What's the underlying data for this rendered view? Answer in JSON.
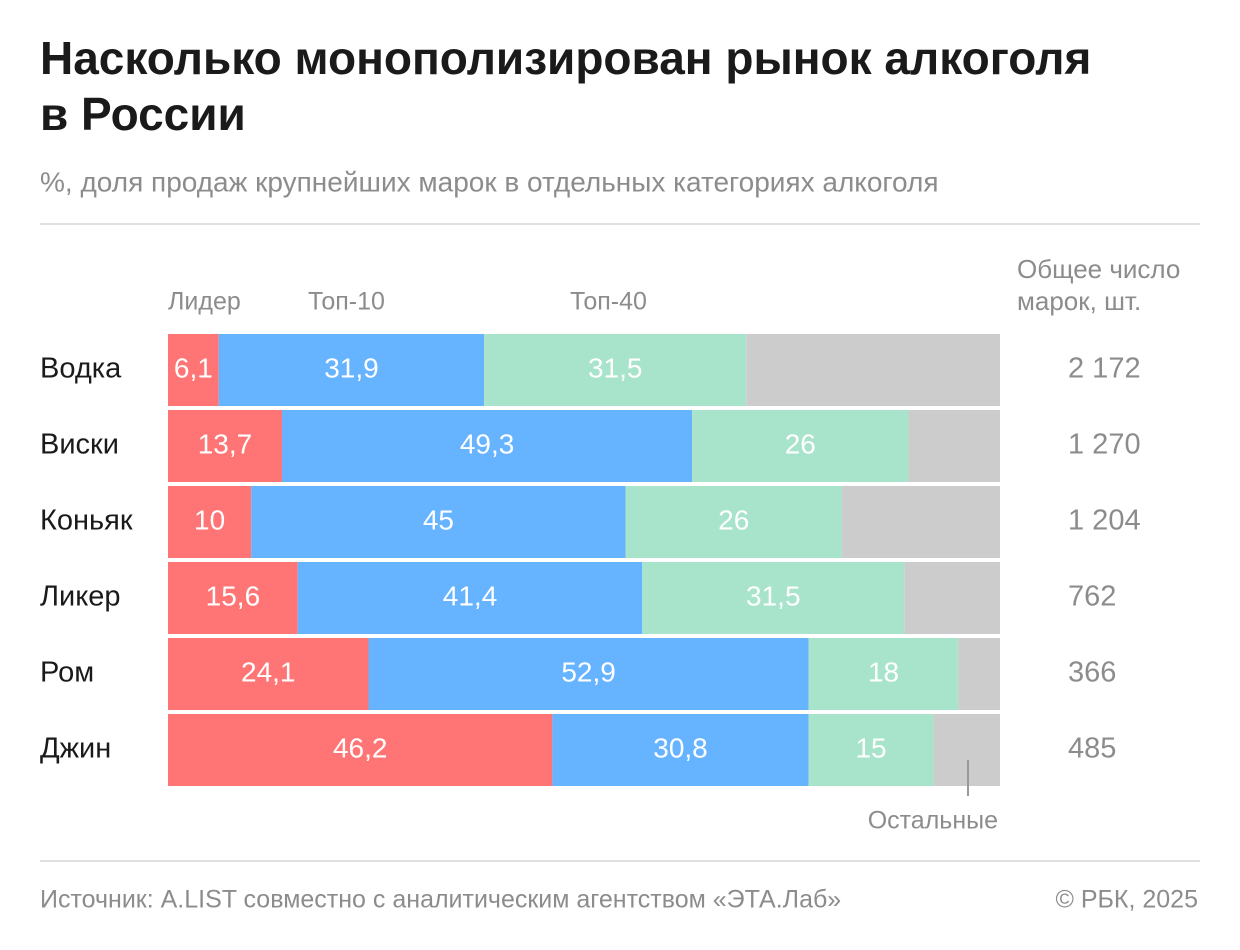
{
  "chart_data": {
    "type": "stacked-bar-horizontal",
    "title": "Насколько монополизирован рынок алкоголя в России",
    "subtitle": "%, доля продаж крупнейших марок в отдельных категориях алкоголя",
    "categories": [
      "Водка",
      "Виски",
      "Коньяк",
      "Ликер",
      "Ром",
      "Джин"
    ],
    "xlim": [
      0,
      100
    ],
    "series": [
      {
        "name": "Лидер",
        "color": "#ff7575",
        "values": [
          6.1,
          13.7,
          10,
          15.6,
          24.1,
          46.2
        ],
        "value_labels": [
          "6,1",
          "13,7",
          "10",
          "15,6",
          "24,1",
          "46,2"
        ]
      },
      {
        "name": "Топ-10",
        "color": "#66b3ff",
        "values": [
          31.9,
          49.3,
          45,
          41.4,
          52.9,
          30.8
        ],
        "value_labels": [
          "31,9",
          "49,3",
          "45",
          "41,4",
          "52,9",
          "30,8"
        ]
      },
      {
        "name": "Топ-40",
        "color": "#a8e3cb",
        "values": [
          31.5,
          26,
          26,
          31.5,
          18,
          15
        ],
        "value_labels": [
          "31,5",
          "26",
          "26",
          "31,5",
          "18",
          "15"
        ]
      },
      {
        "name": "Остальные",
        "color": "#cccccc",
        "values": [
          30.5,
          11,
          19,
          11.5,
          5,
          8
        ]
      }
    ],
    "brand_counts": {
      "title": [
        "Общее число",
        "марок, шт."
      ],
      "values": [
        2172,
        1270,
        1204,
        762,
        366,
        485
      ],
      "value_labels": [
        "2 172",
        "1 270",
        "1 204",
        "762",
        "366",
        "485"
      ]
    },
    "source": "Источник: A.LIST совместно с аналитическим агентством «ЭТА.Лаб»",
    "copyright": "© РБК, 2025"
  }
}
